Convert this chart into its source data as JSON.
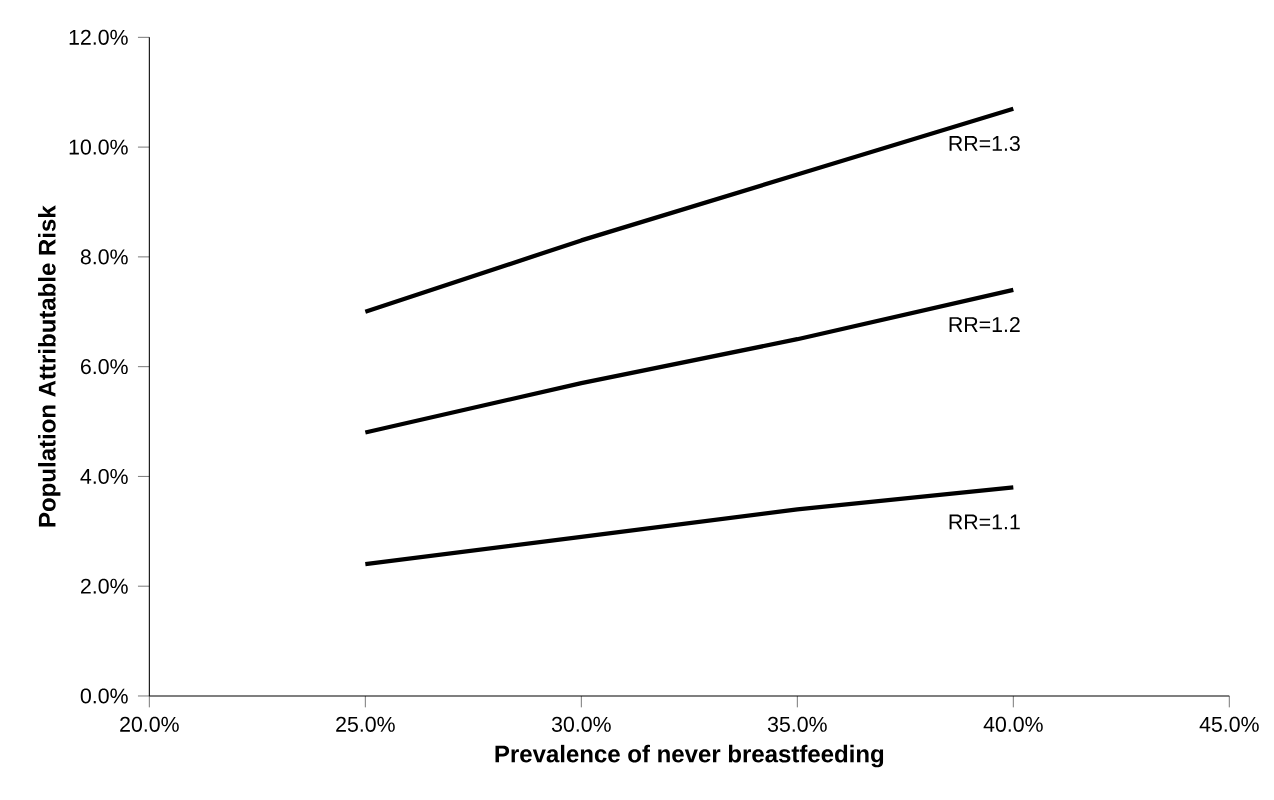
{
  "chart_data": {
    "type": "line",
    "xlabel": "Prevalence of never breastfeeding",
    "ylabel": "Population   Attributable Risk",
    "x": [
      25,
      30,
      35,
      40
    ],
    "series": [
      {
        "name": "RR=1.3",
        "color": "#000000",
        "values": [
          7.0,
          8.3,
          9.5,
          10.7
        ]
      },
      {
        "name": "RR=1.2",
        "color": "#000000",
        "values": [
          4.8,
          5.7,
          6.5,
          7.4
        ]
      },
      {
        "name": "RR=1.1",
        "color": "#000000",
        "values": [
          2.4,
          2.9,
          3.4,
          3.8
        ]
      }
    ],
    "xlim": [
      20,
      45
    ],
    "ylim": [
      0,
      12
    ],
    "xticks": [
      {
        "value": 20,
        "label": "20.0%"
      },
      {
        "value": 25,
        "label": "25.0%"
      },
      {
        "value": 30,
        "label": "30.0%"
      },
      {
        "value": 35,
        "label": "35.0%"
      },
      {
        "value": 40,
        "label": "40.0%"
      },
      {
        "value": 45,
        "label": "45.0%"
      }
    ],
    "yticks": [
      {
        "value": 0,
        "label": "0.0%"
      },
      {
        "value": 2,
        "label": "2.0%"
      },
      {
        "value": 4,
        "label": "4.0%"
      },
      {
        "value": 6,
        "label": "6.0%"
      },
      {
        "value": 8,
        "label": "8.0%"
      },
      {
        "value": 10,
        "label": "10.0%"
      },
      {
        "value": 12,
        "label": "12.0%"
      }
    ],
    "grid": false,
    "legend": false,
    "marker": "none",
    "line_style": "solid"
  }
}
